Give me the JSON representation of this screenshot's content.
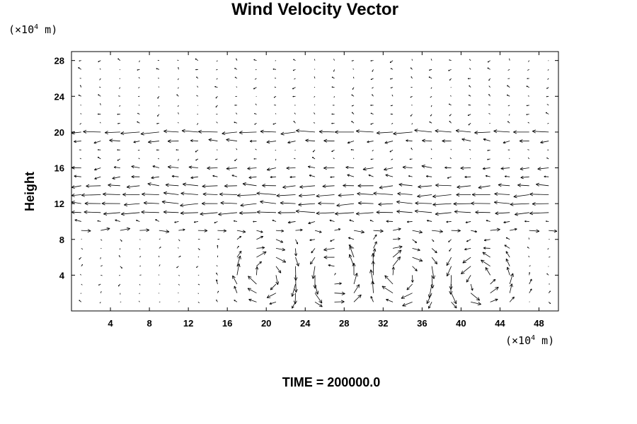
{
  "chart_data": {
    "type": "vector_field",
    "title": "Wind Velocity Vector",
    "ylabel": "Height",
    "y_unit": {
      "prefix": "(×10",
      "exp": "4",
      "suffix": " m)"
    },
    "x_unit": {
      "prefix": "(×10",
      "exp": "4",
      "suffix": " m)"
    },
    "xlim": [
      0,
      50
    ],
    "ylim": [
      0,
      29
    ],
    "x_ticks": [
      4,
      8,
      12,
      16,
      20,
      24,
      28,
      32,
      36,
      40,
      44,
      48
    ],
    "y_ticks": [
      4,
      8,
      12,
      16,
      20,
      24,
      28
    ],
    "grid": false,
    "vector_color": "#000000",
    "flow_regions": {
      "upper_level_zonal_bands": [
        {
          "y": 20,
          "u": -1.0
        },
        {
          "y": 19,
          "u": -0.5
        },
        {
          "y": 16,
          "u": -0.5
        },
        {
          "y": 15,
          "u": -0.35
        },
        {
          "y": 14,
          "u": -0.8
        },
        {
          "y": 13,
          "u": -1.0
        },
        {
          "y": 12,
          "u": -1.0
        },
        {
          "y": 11,
          "u": -1.0
        },
        {
          "y": 10,
          "u": -0.3
        },
        {
          "y": 9,
          "u": 0.5
        }
      ],
      "lower_level_eddy_centers": [
        {
          "x": 20,
          "y": 4,
          "sense": "clockwise"
        },
        {
          "x": 27,
          "y": 4,
          "sense": "counterclockwise"
        },
        {
          "x": 34,
          "y": 4,
          "sense": "clockwise"
        },
        {
          "x": 42,
          "y": 3.5,
          "sense": "counterclockwise"
        }
      ]
    }
  },
  "footer": {
    "label": "TIME = 200000.0"
  }
}
